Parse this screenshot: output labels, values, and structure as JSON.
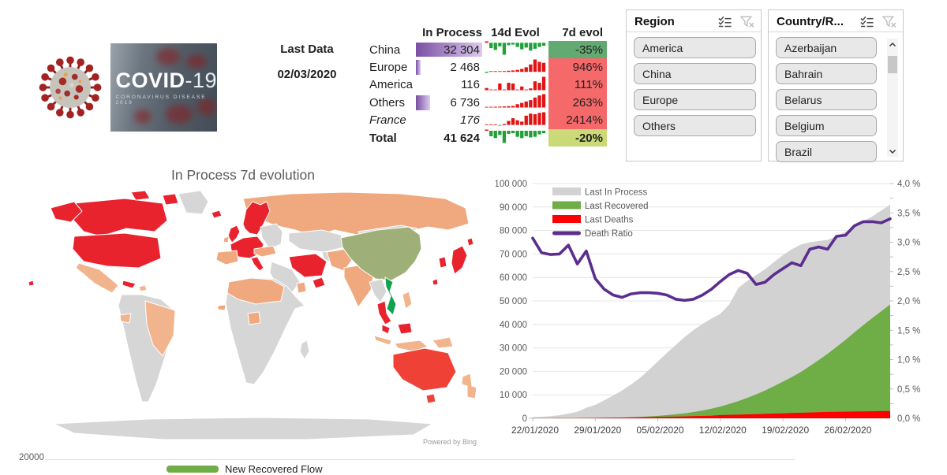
{
  "logo": {
    "title_bold": "COVID",
    "title_light": "-19",
    "subtitle": "CORONAVIRUS DISEASE 2019"
  },
  "last_data": {
    "label": "Last Data",
    "date": "02/03/2020"
  },
  "summary_table": {
    "headers": {
      "in_process": "In Process",
      "evol_14d": "14d Evol",
      "evol_7d": "7d evol"
    },
    "bar_max": 32304,
    "spark_colors": {
      "up": "#e01414",
      "down": "#21a038"
    },
    "rows": [
      {
        "region": "China",
        "in_process": "32 304",
        "value": 32304,
        "evol_7d": "-35%",
        "cell_bg": "#63a972",
        "style": "normal",
        "spark": [
          0.12,
          -0.45,
          -0.6,
          -0.3,
          -1.0,
          -0.2,
          -0.15,
          -0.35,
          -0.55,
          -0.4,
          -0.65,
          -0.5,
          -0.35,
          -0.25
        ]
      },
      {
        "region": "Europe",
        "in_process": "2 468",
        "value": 2468,
        "evol_7d": "946%",
        "cell_bg": "#f5696a",
        "style": "normal",
        "spark": [
          -0.06,
          0.02,
          0.03,
          0.04,
          0.05,
          0.07,
          0.09,
          0.12,
          0.18,
          0.28,
          0.45,
          0.75,
          0.6,
          0.55
        ]
      },
      {
        "region": "America",
        "in_process": "116",
        "value": 116,
        "evol_7d": "111%",
        "cell_bg": "#f5696a",
        "style": "normal",
        "spark": [
          0.15,
          0,
          0,
          0.45,
          0,
          0.5,
          0.45,
          0,
          0.25,
          0,
          0.12,
          0.6,
          0.5,
          0.9
        ]
      },
      {
        "region": "Others",
        "in_process": "6 736",
        "value": 6736,
        "evol_7d": "263%",
        "cell_bg": "#f5696a",
        "style": "normal",
        "spark": [
          0.05,
          0.05,
          0.06,
          0.07,
          0.08,
          0.1,
          0.12,
          0.25,
          0.35,
          0.45,
          0.55,
          0.75,
          0.9,
          1.0
        ]
      },
      {
        "region": "France",
        "in_process": "176",
        "value": 176,
        "evol_7d": "2414%",
        "cell_bg": "#f5696a",
        "style": "italic",
        "spark": [
          0,
          0,
          0,
          -0.05,
          0.08,
          0.3,
          0.5,
          0.35,
          0.25,
          0.7,
          0.85,
          0.8,
          0.9,
          0.95
        ]
      },
      {
        "region": "Total",
        "in_process": "41 624",
        "value": 41624,
        "evol_7d": "-20%",
        "cell_bg": "#cbd978",
        "style": "bold",
        "spark": [
          0.1,
          -0.45,
          -0.6,
          -0.35,
          -1.0,
          -0.25,
          -0.2,
          -0.5,
          -0.6,
          -0.45,
          -0.55,
          -0.5,
          -0.3,
          -0.2
        ]
      }
    ]
  },
  "slicers": {
    "region": {
      "title": "Region",
      "items": [
        "America",
        "China",
        "Europe",
        "Others"
      ]
    },
    "country": {
      "title": "Country/R...",
      "items": [
        "Azerbaijan",
        "Bahrain",
        "Belarus",
        "Belgium",
        "Brazil"
      ]
    }
  },
  "map": {
    "title": "In Process 7d evolution",
    "attribution": "Powered by Bing",
    "palette": {
      "red": "#e8232e",
      "red_light": "#ef4136",
      "orange": "#f0a87e",
      "orange_light": "#f2b48c",
      "sage": "#9eb077",
      "green": "#10a24e",
      "gray": "#d6d6d6"
    },
    "regions": {
      "alaska": "red",
      "hawaii": "red",
      "canada": "red",
      "canada_isl_1": "red",
      "canada_isl_2": "red",
      "greenland": "gray",
      "usa": "red",
      "mexico": "orange_light",
      "cuba": "red",
      "caribbean": "orange_light",
      "south_america": "gray",
      "brazil": "orange_light",
      "ecuador": "orange_light",
      "iceland": "red",
      "uk": "red",
      "ireland": "orange",
      "scandinavia": "red",
      "west_europe": "red",
      "italy": "red",
      "spain": "orange",
      "east_europe": "gray",
      "russia": "orange",
      "kazakhstan": "gray",
      "central_asia": "gray",
      "turkey": "orange",
      "iran": "red",
      "gulf": "red",
      "arabia": "gray",
      "oman": "orange",
      "north_africa": "orange",
      "africa": "gray",
      "nigeria": "orange",
      "senegal": "orange",
      "madagascar": "gray",
      "afghanistan_pakistan": "orange",
      "india": "orange",
      "china": "sage",
      "mongolia": "gray",
      "myanmar": "gray",
      "vietnam": "green",
      "thailand": "red",
      "malaysia": "red",
      "borneo_malaysia": "red",
      "indonesia_west": "orange_light",
      "indonesia_east": "orange_light",
      "papua": "orange_light",
      "philippines": "orange_light",
      "south_korea": "red",
      "japan": "red",
      "japan_north": "red",
      "taiwan": "red",
      "australia": "red_light",
      "tasmania": "red_light",
      "new_zealand": "orange_light",
      "antarctica": "gray"
    }
  },
  "chart_data": {
    "type": "area+line",
    "x_count": 41,
    "x_tick_positions": [
      0,
      7,
      14,
      21,
      28,
      35
    ],
    "x_tick_labels": [
      "22/01/2020",
      "29/01/2020",
      "05/02/2020",
      "12/02/2020",
      "19/02/2020",
      "26/02/2020"
    ],
    "y_left": {
      "min": 0,
      "max": 100000,
      "step": 10000,
      "labels": [
        "0",
        "10 000",
        "20 000",
        "30 000",
        "40 000",
        "50 000",
        "60 000",
        "70 000",
        "80 000",
        "90 000",
        "100 000"
      ]
    },
    "y_right": {
      "min": 0,
      "max": 4,
      "step": 0.5,
      "labels": [
        "0,0 %",
        "0,5 %",
        "1,0 %",
        "1,5 %",
        "2,0 %",
        "2,5 %",
        "3,0 %",
        "3,5 %",
        "4,0 %"
      ]
    },
    "legend_position": "top-left",
    "series": [
      {
        "name": "Last In Process",
        "type": "area",
        "axis": "left",
        "color": "#d2d2d2",
        "values": [
          500,
          650,
          900,
          1300,
          2000,
          2800,
          4500,
          5700,
          7700,
          9700,
          11800,
          14400,
          17200,
          20600,
          24200,
          27800,
          31200,
          34600,
          37600,
          40200,
          42500,
          44500,
          48500,
          55500,
          58500,
          61000,
          63500,
          66500,
          69500,
          72000,
          74000,
          75000,
          75500,
          76000,
          77500,
          79500,
          81500,
          84000,
          86000,
          88500,
          91000
        ]
      },
      {
        "name": "Last Recovered",
        "type": "area",
        "axis": "left",
        "color": "#6fad47",
        "values": [
          30,
          40,
          55,
          70,
          90,
          110,
          130,
          170,
          220,
          280,
          340,
          450,
          600,
          800,
          1050,
          1350,
          1700,
          2100,
          2700,
          3300,
          4100,
          5000,
          6100,
          7300,
          8700,
          10200,
          11800,
          13700,
          15600,
          17600,
          19700,
          22200,
          24800,
          27500,
          30400,
          33400,
          36600,
          39700,
          42700,
          45600,
          48500
        ]
      },
      {
        "name": "Last Deaths",
        "type": "area",
        "axis": "left",
        "color": "#fe0000",
        "values": [
          20,
          30,
          40,
          60,
          80,
          100,
          130,
          170,
          210,
          260,
          310,
          370,
          430,
          490,
          560,
          640,
          720,
          810,
          910,
          1020,
          1120,
          1370,
          1490,
          1550,
          1670,
          1780,
          1880,
          2010,
          2120,
          2250,
          2360,
          2470,
          2600,
          2710,
          2770,
          2820,
          2870,
          2920,
          2980,
          3050,
          3100
        ]
      },
      {
        "name": "Death Ratio",
        "type": "line",
        "axis": "right",
        "color": "#5b2d8f",
        "values": [
          3.07,
          2.82,
          2.79,
          2.8,
          2.95,
          2.63,
          2.85,
          2.38,
          2.2,
          2.1,
          2.06,
          2.12,
          2.14,
          2.14,
          2.13,
          2.1,
          2.03,
          2.01,
          2.03,
          2.1,
          2.2,
          2.33,
          2.45,
          2.52,
          2.47,
          2.28,
          2.32,
          2.45,
          2.55,
          2.65,
          2.6,
          2.88,
          2.92,
          2.88,
          3.1,
          3.12,
          3.28,
          3.35,
          3.35,
          3.33,
          3.4
        ]
      }
    ]
  },
  "bottom_chart": {
    "axis_label": "20000",
    "legend_label": "New Recovered Flow",
    "legend_color": "#70ad47"
  }
}
